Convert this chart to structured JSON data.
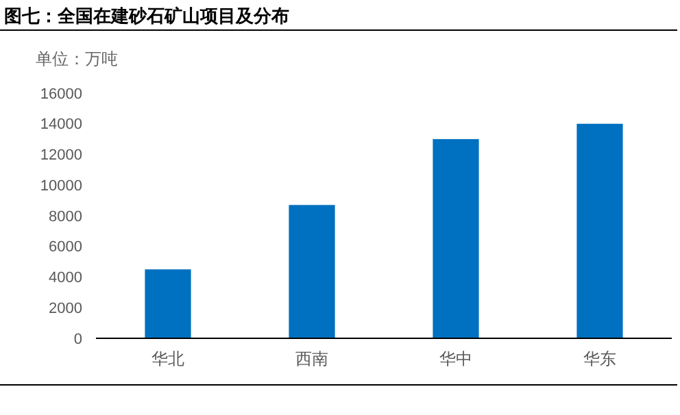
{
  "chart_data": {
    "type": "bar",
    "title": "图七：全国在建砂石矿山项目及分布",
    "ylabel": "单位：万吨",
    "categories": [
      "华北",
      "西南",
      "华中",
      "华东"
    ],
    "values": [
      4500,
      8700,
      13000,
      14000
    ],
    "color": "#0070c0",
    "ylim": [
      0,
      16000
    ],
    "yticks": [
      0,
      2000,
      4000,
      6000,
      8000,
      10000,
      12000,
      14000,
      16000
    ],
    "grid": false
  }
}
